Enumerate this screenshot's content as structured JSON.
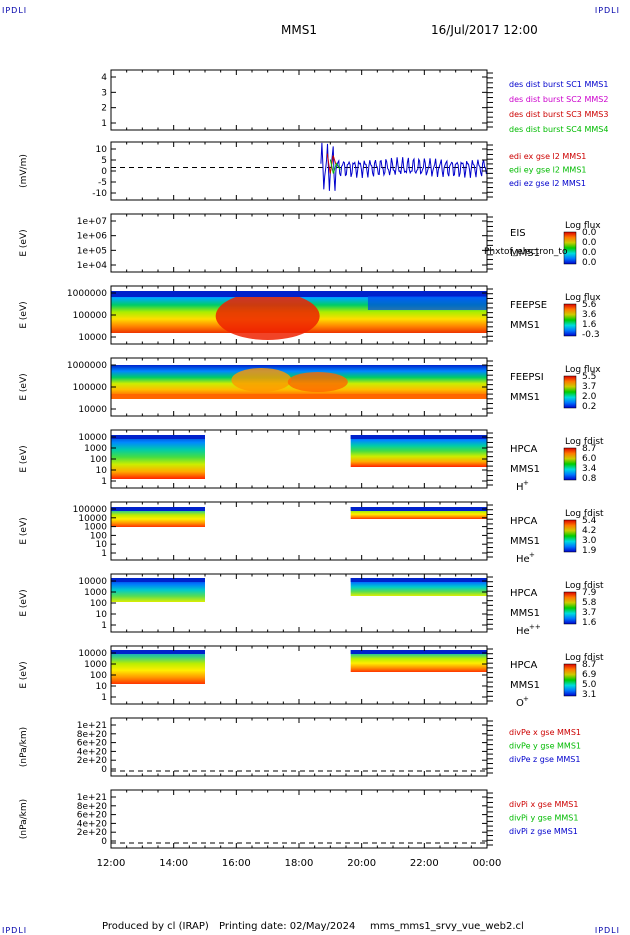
{
  "header": {
    "corner_left": "IPDLI",
    "corner_right": "IPDLI",
    "title": "MMS1",
    "datetime": "16/Jul/2017 12:00"
  },
  "footer": {
    "produced_by": "Produced by cl (IRAP)",
    "printing_date": "Printing date: 02/May/2024",
    "product": "mms_mms1_srvy_vue_web2.cl",
    "corner_left": "IPDLI",
    "corner_right": "IPDLI"
  },
  "xaxis": {
    "ticks": [
      "12:00",
      "14:00",
      "16:00",
      "18:00",
      "20:00",
      "22:00",
      "00:00"
    ],
    "range_hours": [
      12,
      24
    ]
  },
  "panels": [
    {
      "id": "des",
      "type": "line",
      "ylabel": "",
      "yticks": [
        "4",
        "3",
        "2",
        "1"
      ],
      "ylim": [
        0.5,
        4.5
      ],
      "legend": [
        {
          "text": "des dist burst SC1 MMS1",
          "color": "#0000cc"
        },
        {
          "text": "des dist burst SC2 MMS2",
          "color": "#cc00cc"
        },
        {
          "text": "des dist burst SC3 MMS3",
          "color": "#cc0000"
        },
        {
          "text": "des dist burst SC4 MMS4",
          "color": "#00bb00"
        }
      ]
    },
    {
      "id": "edi",
      "type": "line",
      "ylabel": "(mV/m)",
      "yticks": [
        "10",
        "5",
        "0",
        "-5",
        "-10"
      ],
      "ylim": [
        -13,
        12
      ],
      "legend": [
        {
          "text": "edi ex gse l2 MMS1",
          "color": "#cc0000"
        },
        {
          "text": "edi ey gse l2 MMS1",
          "color": "#00bb00"
        },
        {
          "text": "edi ez gse l2 MMS1",
          "color": "#0000cc"
        }
      ]
    },
    {
      "id": "eis",
      "type": "heatmap",
      "ylabel": "E (eV)",
      "yticks": [
        "1e+07",
        "1e+06",
        "1e+05",
        "1e+04"
      ],
      "inst": [
        "EIS",
        "MMS1"
      ],
      "overlay": "Phxtof_electron_to",
      "cb_title": "Log flux",
      "cb_ticks": [
        "0.0",
        "0.0",
        "0.0",
        "0.0"
      ]
    },
    {
      "id": "feepse",
      "type": "heatmap",
      "ylabel": "E (eV)",
      "yticks": [
        "1000000",
        "100000",
        "10000"
      ],
      "inst": [
        "FEEPSE",
        "MMS1"
      ],
      "cb_title": "Log flux",
      "cb_ticks": [
        "5.6",
        "3.6",
        "1.6",
        "-0.3"
      ]
    },
    {
      "id": "feepsi",
      "type": "heatmap",
      "ylabel": "E (eV)",
      "yticks": [
        "1000000",
        "100000",
        "10000"
      ],
      "inst": [
        "FEEPSI",
        "MMS1"
      ],
      "cb_title": "Log flux",
      "cb_ticks": [
        "5.5",
        "3.7",
        "2.0",
        "0.2"
      ]
    },
    {
      "id": "hpca_h",
      "type": "heatmap",
      "ylabel": "E (eV)",
      "yticks": [
        "10000",
        "1000",
        "100",
        "10",
        "1"
      ],
      "inst": [
        "HPCA",
        "MMS1"
      ],
      "species": "H",
      "charge": "+",
      "cb_title": "Log fdist",
      "cb_ticks": [
        "8.7",
        "6.0",
        "3.4",
        "0.8"
      ]
    },
    {
      "id": "hpca_he",
      "type": "heatmap",
      "ylabel": "E (eV)",
      "yticks": [
        "100000",
        "10000",
        "1000",
        "100",
        "10",
        "1"
      ],
      "inst": [
        "HPCA",
        "MMS1"
      ],
      "species": "He",
      "charge": "+",
      "cb_title": "Log fdist",
      "cb_ticks": [
        "5.4",
        "4.2",
        "3.0",
        "1.9"
      ]
    },
    {
      "id": "hpca_hepp",
      "type": "heatmap",
      "ylabel": "E (eV)",
      "yticks": [
        "10000",
        "1000",
        "100",
        "10",
        "1"
      ],
      "inst": [
        "HPCA",
        "MMS1"
      ],
      "species": "He",
      "charge": "++",
      "cb_title": "Log fdist",
      "cb_ticks": [
        "7.9",
        "5.8",
        "3.7",
        "1.6"
      ]
    },
    {
      "id": "hpca_o",
      "type": "heatmap",
      "ylabel": "E (eV)",
      "yticks": [
        "10000",
        "1000",
        "100",
        "10",
        "1"
      ],
      "inst": [
        "HPCA",
        "MMS1"
      ],
      "species": "O",
      "charge": "+",
      "cb_title": "Log fdist",
      "cb_ticks": [
        "8.7",
        "6.9",
        "5.0",
        "3.1"
      ]
    },
    {
      "id": "divpe",
      "type": "line",
      "ylabel": "(nPa/km)",
      "yticks": [
        "1e+21",
        "8e+20",
        "6e+20",
        "4e+20",
        "2e+20",
        "0"
      ],
      "legend": [
        {
          "text": "divPe x gse MMS1",
          "color": "#cc0000"
        },
        {
          "text": "divPe y gse MMS1",
          "color": "#00bb00"
        },
        {
          "text": "divPe z gse MMS1",
          "color": "#0000cc"
        }
      ]
    },
    {
      "id": "divpi",
      "type": "line",
      "ylabel": "(nPa/km)",
      "yticks": [
        "1e+21",
        "8e+20",
        "6e+20",
        "4e+20",
        "2e+20",
        "0"
      ],
      "legend": [
        {
          "text": "divPi x gse MMS1",
          "color": "#cc0000"
        },
        {
          "text": "divPi y gse MMS1",
          "color": "#00bb00"
        },
        {
          "text": "divPi z gse MMS1",
          "color": "#0000cc"
        }
      ]
    }
  ],
  "chart_data": {
    "type": "heatmap",
    "title": "MMS1",
    "xlabel": "",
    "x_range": [
      "12:00",
      "00:00"
    ],
    "hpca_data_intervals_hours": [
      [
        12.0,
        15.0
      ],
      [
        19.65,
        24.0
      ]
    ],
    "feeps_high_flux_interval_hours": [
      15.5,
      19.0
    ]
  }
}
